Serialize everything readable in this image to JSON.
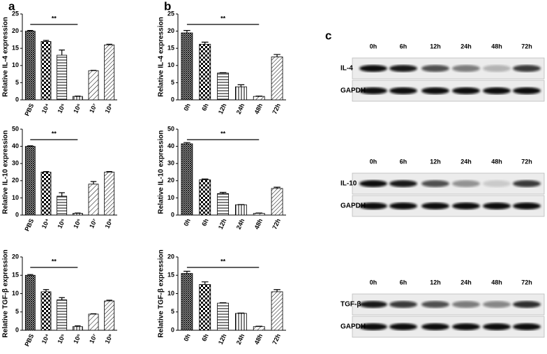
{
  "panel_labels": [
    "a",
    "b",
    "c"
  ],
  "chart_data": [
    {
      "type": "bar",
      "ylabel": "Relative IL-4 expression",
      "categories": [
        "PBS",
        "10⁴",
        "10⁵",
        "10⁶",
        "10⁷",
        "10⁸"
      ],
      "values": [
        20,
        17,
        13,
        1,
        8.5,
        16
      ],
      "errors": [
        0.2,
        0.3,
        1.5,
        0.1,
        0.1,
        0.2
      ],
      "ylim": [
        0,
        25
      ],
      "yticks": [
        0,
        5,
        10,
        15,
        20,
        25
      ],
      "annotation": "**"
    },
    {
      "type": "bar",
      "ylabel": "Relative IL-10 expression",
      "categories": [
        "PBS",
        "10⁴",
        "10⁵",
        "10⁶",
        "10⁷",
        "10⁸"
      ],
      "values": [
        40,
        25,
        11,
        1,
        18,
        25
      ],
      "errors": [
        0.3,
        0.3,
        2,
        0.2,
        1.5,
        0.3
      ],
      "ylim": [
        0,
        50
      ],
      "yticks": [
        0,
        10,
        20,
        30,
        40,
        50
      ],
      "annotation": "**"
    },
    {
      "type": "bar",
      "ylabel": "Relative TGF-β expression",
      "categories": [
        "PBS",
        "10⁴",
        "10⁵",
        "10⁶",
        "10⁷",
        "10⁸"
      ],
      "values": [
        15,
        10.5,
        8.3,
        1,
        4.4,
        8
      ],
      "errors": [
        0.2,
        0.6,
        0.6,
        0.2,
        0.1,
        0.2
      ],
      "ylim": [
        0,
        20
      ],
      "yticks": [
        0,
        5,
        10,
        15,
        20
      ],
      "annotation": "**"
    },
    {
      "type": "bar",
      "ylabel": "Relative IL-4 expression",
      "categories": [
        "0h",
        "6h",
        "12h",
        "24h",
        "48h",
        "72h"
      ],
      "values": [
        19.5,
        16.2,
        7.8,
        3.8,
        1,
        12.5
      ],
      "errors": [
        0.7,
        0.6,
        0.1,
        0.6,
        0.1,
        0.7
      ],
      "ylim": [
        0,
        25
      ],
      "yticks": [
        0,
        5,
        10,
        15,
        20,
        25
      ],
      "annotation": "**"
    },
    {
      "type": "bar",
      "ylabel": "Relative IL-10 expression",
      "categories": [
        "0h",
        "6h",
        "12h",
        "24h",
        "48h",
        "72h"
      ],
      "values": [
        41.5,
        20.5,
        12.5,
        6,
        1,
        15.5
      ],
      "errors": [
        0.7,
        0.5,
        0.7,
        0.1,
        0.2,
        0.7
      ],
      "ylim": [
        0,
        50
      ],
      "yticks": [
        0,
        10,
        20,
        30,
        40,
        50
      ],
      "annotation": "**"
    },
    {
      "type": "bar",
      "ylabel": "Relative TGF-β expression",
      "categories": [
        "0h",
        "6h",
        "12h",
        "24h",
        "48h",
        "72h"
      ],
      "values": [
        15.5,
        12.5,
        7.4,
        4.6,
        1,
        10.5
      ],
      "errors": [
        0.6,
        0.7,
        0.1,
        0.1,
        0.1,
        0.6
      ],
      "ylim": [
        0,
        20
      ],
      "yticks": [
        0,
        5,
        10,
        15,
        20
      ],
      "annotation": "**"
    }
  ],
  "blots": {
    "lanes": [
      "0h",
      "6h",
      "12h",
      "24h",
      "48h",
      "72h"
    ],
    "groups": [
      {
        "target": "IL-4",
        "control": "GAPDH"
      },
      {
        "target": "IL-10",
        "control": "GAPDH"
      },
      {
        "target": "TGF-β",
        "control": "GAPDH"
      }
    ]
  }
}
